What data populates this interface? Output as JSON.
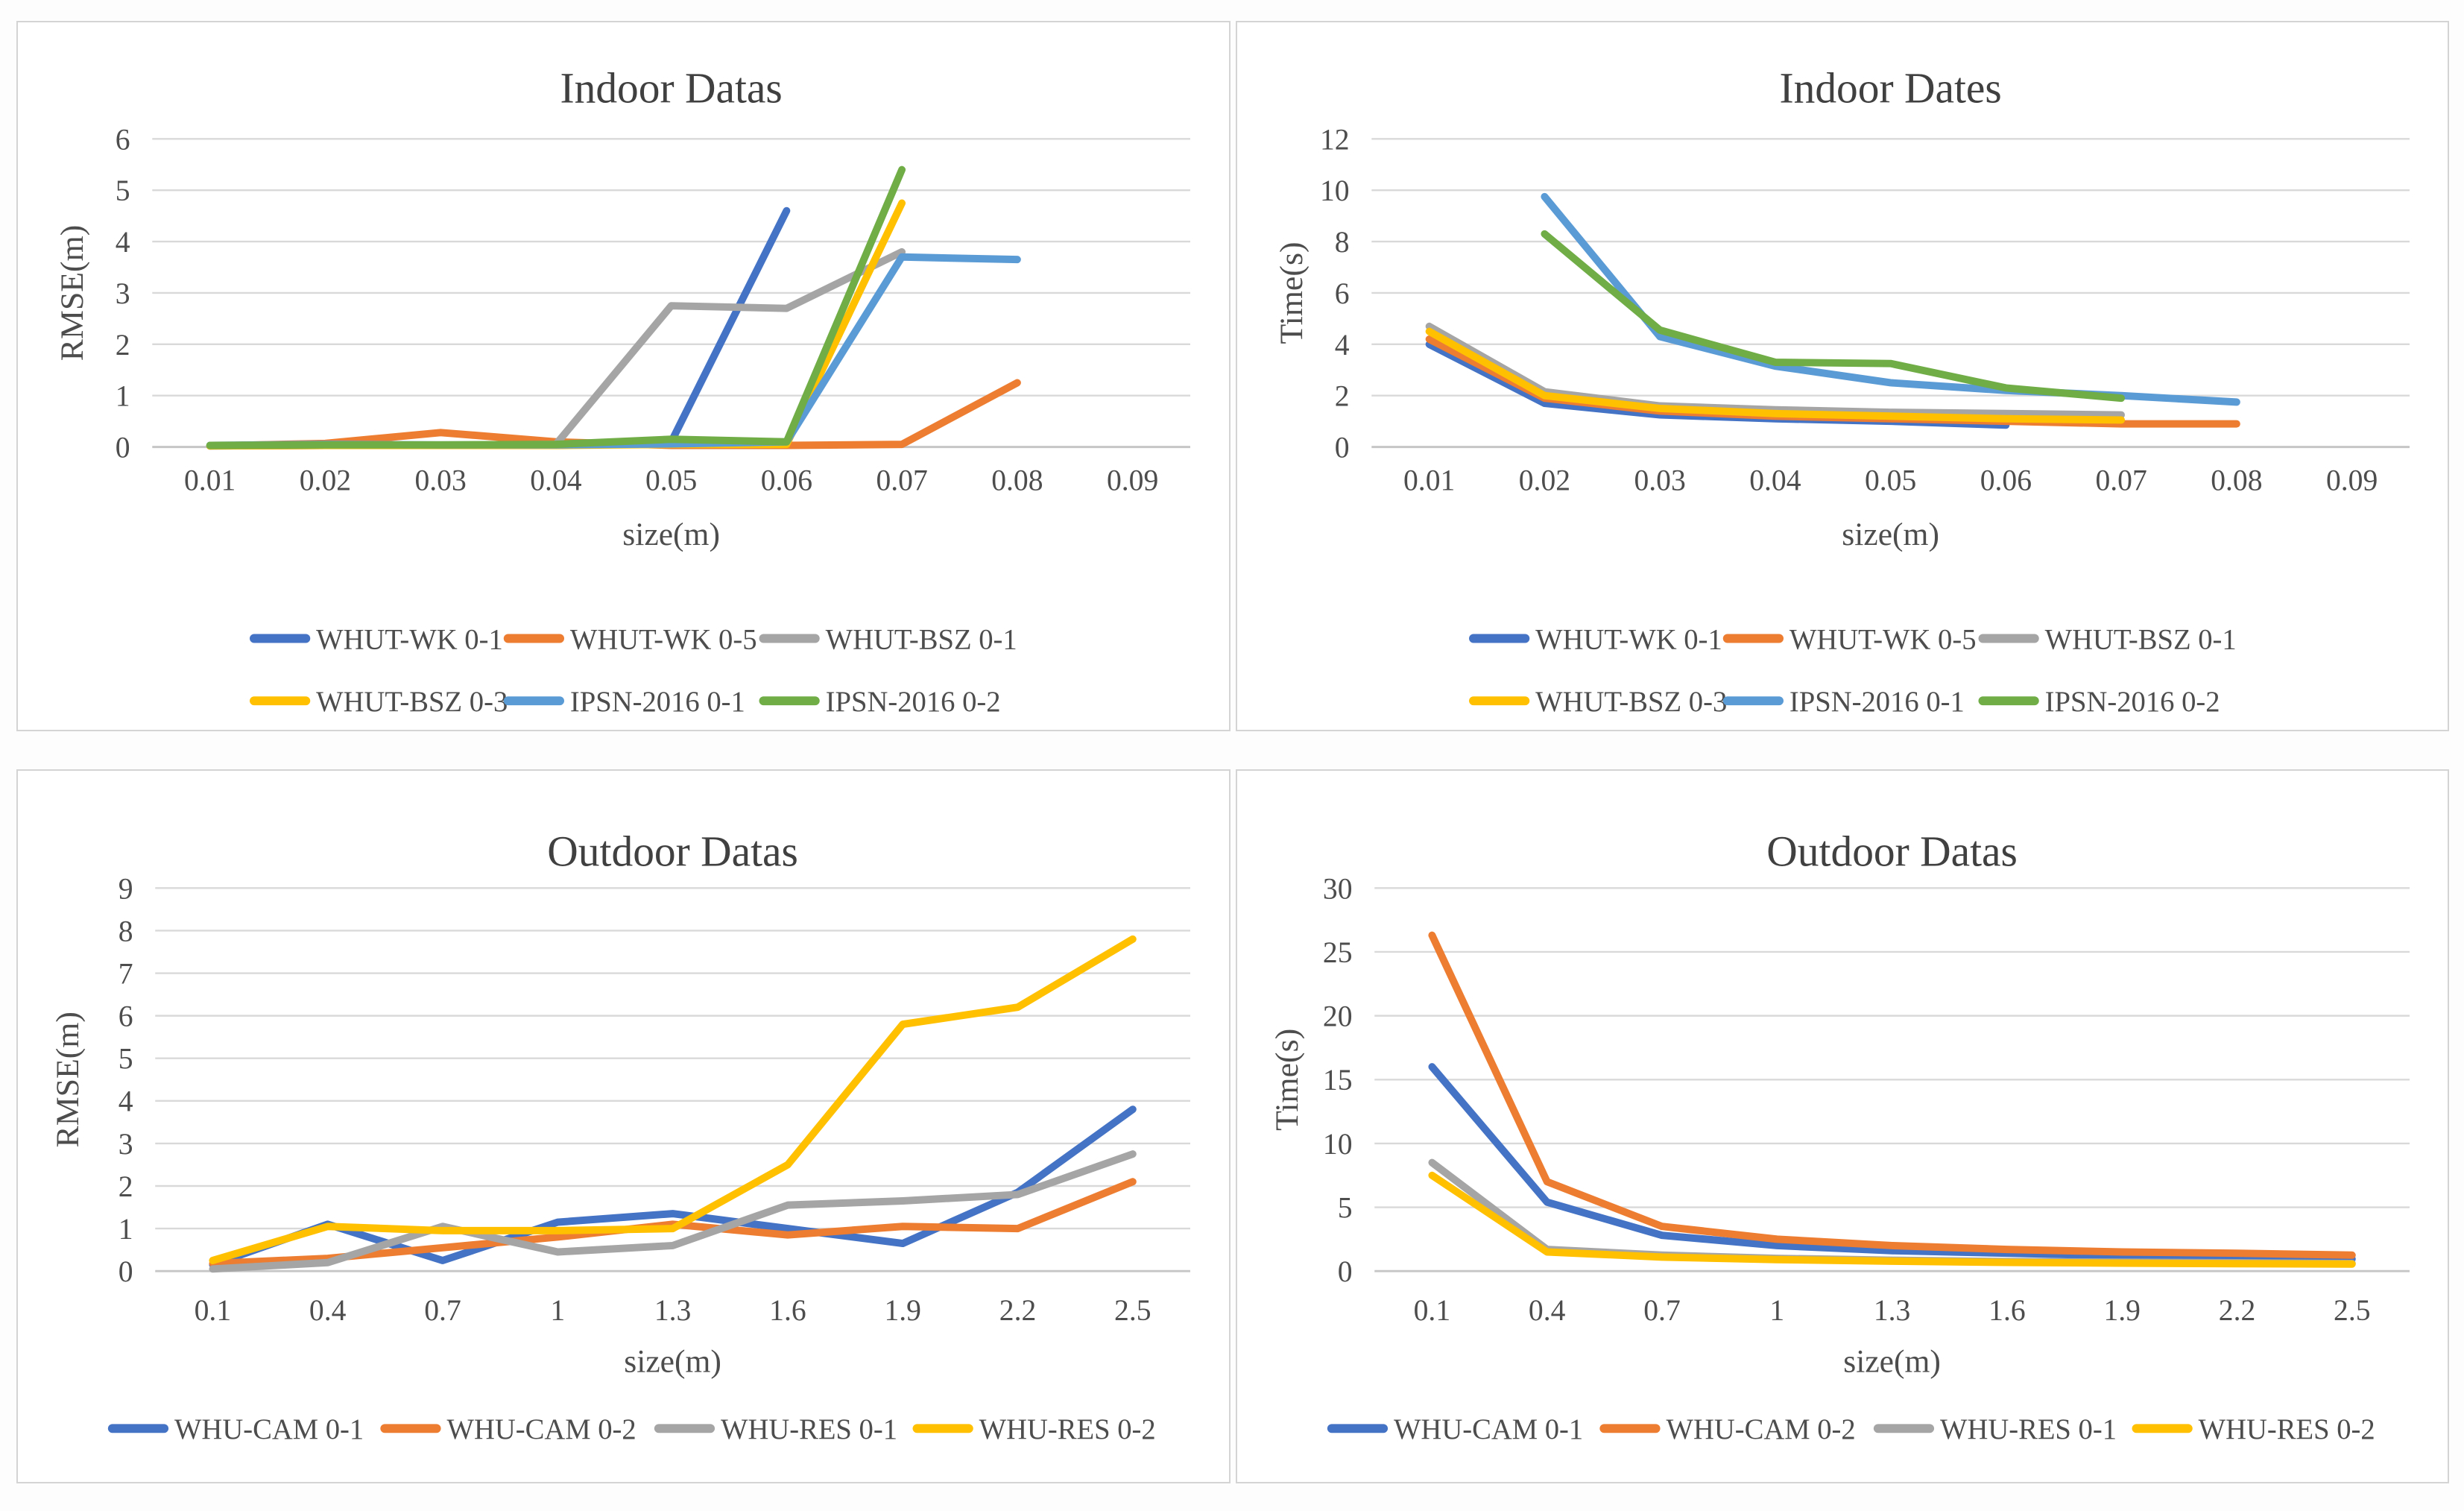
{
  "figure": {
    "background": "#fdfdfd",
    "panel_border_color": "#d4d4d4",
    "gridline_color": "#d9d9d9",
    "axis_line_color": "#c6c6c6",
    "title_color": "#404040",
    "tick_color": "#4d4d4d"
  },
  "chart_data": [
    {
      "type": "line",
      "title": "Indoor Datas",
      "xlabel": "size(m)",
      "ylabel": "RMSE(m)",
      "categories": [
        "0.01",
        "0.02",
        "0.03",
        "0.04",
        "0.05",
        "0.06",
        "0.07",
        "0.08",
        "0.09"
      ],
      "ylim": [
        0,
        6
      ],
      "yticks": [
        0,
        1,
        2,
        3,
        4,
        5,
        6
      ],
      "grid": true,
      "legend_position": "bottom",
      "legend_rows": 2,
      "series": [
        {
          "name": "WHUT-WK 0-1",
          "color": "#4472C4",
          "start": 0,
          "values": [
            0.02,
            0.03,
            0.03,
            0.03,
            0.1,
            4.6
          ]
        },
        {
          "name": "WHUT-WK 0-5",
          "color": "#ED7D31",
          "start": 0,
          "values": [
            0.02,
            0.07,
            0.28,
            0.1,
            0.03,
            0.03,
            0.05,
            1.25
          ]
        },
        {
          "name": "WHUT-BSZ 0-1",
          "color": "#A5A5A5",
          "start": 0,
          "values": [
            0.02,
            0.03,
            0.03,
            0.05,
            2.75,
            2.7,
            3.8
          ]
        },
        {
          "name": "WHUT-BSZ 0-3",
          "color": "#FFC000",
          "start": 0,
          "values": [
            0.02,
            0.03,
            0.03,
            0.03,
            0.05,
            0.05,
            4.75
          ]
        },
        {
          "name": "IPSN-2016 0-1",
          "color": "#5B9BD5",
          "start": 0,
          "values": [
            0.03,
            0.05,
            0.04,
            0.04,
            0.06,
            0.1,
            3.7,
            3.65
          ]
        },
        {
          "name": "IPSN-2016 0-2",
          "color": "#70AD47",
          "start": 0,
          "values": [
            0.03,
            0.04,
            0.04,
            0.05,
            0.15,
            0.1,
            5.4
          ]
        }
      ]
    },
    {
      "type": "line",
      "title": "Indoor Dates",
      "xlabel": "size(m)",
      "ylabel": "Time(s)",
      "categories": [
        "0.01",
        "0.02",
        "0.03",
        "0.04",
        "0.05",
        "0.06",
        "0.07",
        "0.08",
        "0.09"
      ],
      "ylim": [
        0,
        12
      ],
      "yticks": [
        0,
        2,
        4,
        6,
        8,
        10,
        12
      ],
      "grid": true,
      "legend_position": "bottom",
      "legend_rows": 2,
      "series": [
        {
          "name": "WHUT-WK 0-1",
          "color": "#4472C4",
          "start": 0,
          "values": [
            4.0,
            1.7,
            1.25,
            1.1,
            1.0,
            0.85
          ]
        },
        {
          "name": "WHUT-WK 0-5",
          "color": "#ED7D31",
          "start": 0,
          "values": [
            4.2,
            1.9,
            1.4,
            1.2,
            1.1,
            1.0,
            0.9,
            0.9
          ]
        },
        {
          "name": "WHUT-BSZ 0-1",
          "color": "#A5A5A5",
          "start": 0,
          "values": [
            4.7,
            2.15,
            1.6,
            1.45,
            1.35,
            1.3,
            1.25
          ]
        },
        {
          "name": "WHUT-BSZ 0-3",
          "color": "#FFC000",
          "start": 0,
          "values": [
            4.5,
            2.0,
            1.5,
            1.3,
            1.2,
            1.1,
            1.05
          ]
        },
        {
          "name": "IPSN-2016 0-1",
          "color": "#5B9BD5",
          "start": 1,
          "values": [
            9.75,
            4.3,
            3.15,
            2.5,
            2.2,
            2.0,
            1.75
          ]
        },
        {
          "name": "IPSN-2016 0-2",
          "color": "#70AD47",
          "start": 1,
          "values": [
            8.3,
            4.55,
            3.3,
            3.25,
            2.3,
            1.9
          ]
        }
      ]
    },
    {
      "type": "line",
      "title": "Outdoor Datas",
      "xlabel": "size(m)",
      "ylabel": "RMSE(m)",
      "categories": [
        "0.1",
        "0.4",
        "0.7",
        "1",
        "1.3",
        "1.6",
        "1.9",
        "2.2",
        "2.5"
      ],
      "ylim": [
        0,
        9
      ],
      "yticks": [
        0,
        1,
        2,
        3,
        4,
        5,
        6,
        7,
        8,
        9
      ],
      "grid": true,
      "legend_position": "bottom",
      "legend_rows": 1,
      "series": [
        {
          "name": "WHU-CAM 0-1",
          "color": "#4472C4",
          "start": 0,
          "values": [
            0.15,
            1.1,
            0.25,
            1.15,
            1.35,
            1.0,
            0.65,
            1.85,
            3.8
          ]
        },
        {
          "name": "WHU-CAM 0-2",
          "color": "#ED7D31",
          "start": 0,
          "values": [
            0.18,
            0.3,
            0.55,
            0.8,
            1.1,
            0.85,
            1.05,
            1.0,
            2.1
          ]
        },
        {
          "name": "WHU-RES 0-1",
          "color": "#A5A5A5",
          "start": 0,
          "values": [
            0.05,
            0.2,
            1.05,
            0.45,
            0.6,
            1.55,
            1.65,
            1.8,
            2.75
          ]
        },
        {
          "name": "WHU-RES 0-2",
          "color": "#FFC000",
          "start": 0,
          "values": [
            0.25,
            1.05,
            0.95,
            0.95,
            1.0,
            2.5,
            5.8,
            6.2,
            7.8
          ]
        }
      ]
    },
    {
      "type": "line",
      "title": "Outdoor Datas",
      "xlabel": "size(m)",
      "ylabel": "Time(s)",
      "categories": [
        "0.1",
        "0.4",
        "0.7",
        "1",
        "1.3",
        "1.6",
        "1.9",
        "2.2",
        "2.5"
      ],
      "ylim": [
        0,
        30
      ],
      "yticks": [
        0,
        5,
        10,
        15,
        20,
        25,
        30
      ],
      "grid": true,
      "legend_position": "bottom",
      "legend_rows": 1,
      "series": [
        {
          "name": "WHU-CAM 0-1",
          "color": "#4472C4",
          "start": 0,
          "values": [
            16.0,
            5.4,
            2.8,
            2.0,
            1.6,
            1.4,
            1.2,
            1.1,
            0.95
          ]
        },
        {
          "name": "WHU-CAM 0-2",
          "color": "#ED7D31",
          "start": 0,
          "values": [
            26.3,
            7.0,
            3.5,
            2.5,
            2.0,
            1.7,
            1.5,
            1.4,
            1.25
          ]
        },
        {
          "name": "WHU-RES 0-1",
          "color": "#A5A5A5",
          "start": 0,
          "values": [
            8.5,
            1.7,
            1.25,
            1.0,
            0.85,
            0.75,
            0.7,
            0.65,
            0.6
          ]
        },
        {
          "name": "WHU-RES 0-2",
          "color": "#FFC000",
          "start": 0,
          "values": [
            7.5,
            1.5,
            1.1,
            0.9,
            0.78,
            0.68,
            0.62,
            0.58,
            0.55
          ]
        }
      ]
    }
  ]
}
